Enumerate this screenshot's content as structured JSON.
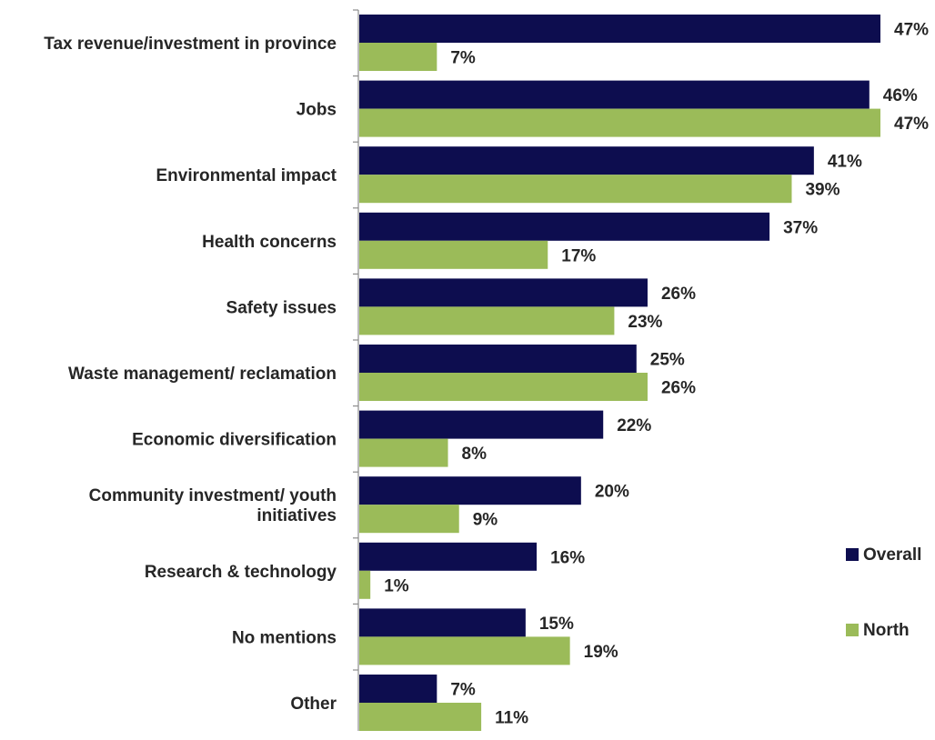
{
  "chart_data": {
    "type": "bar",
    "orientation": "horizontal",
    "categories": [
      [
        "Tax revenue/investment in province"
      ],
      [
        "Jobs"
      ],
      [
        "Environmental impact"
      ],
      [
        "Health concerns"
      ],
      [
        "Safety issues"
      ],
      [
        "Waste management/ reclamation"
      ],
      [
        "Economic diversification"
      ],
      [
        "Community investment/ youth",
        "initiatives"
      ],
      [
        "Research & technology"
      ],
      [
        "No mentions"
      ],
      [
        "Other"
      ]
    ],
    "series": [
      {
        "name": "Overall",
        "color": "#0d0d4f",
        "values": [
          47,
          46,
          41,
          37,
          26,
          25,
          22,
          20,
          16,
          15,
          7
        ],
        "labels": [
          "47%",
          "46%",
          "41%",
          "37%",
          "26%",
          "25%",
          "22%",
          "20%",
          "16%",
          "15%",
          "7%"
        ]
      },
      {
        "name": "North",
        "color": "#9bbb59",
        "values": [
          7,
          47,
          39,
          17,
          23,
          26,
          8,
          9,
          1,
          19,
          11
        ],
        "labels": [
          "7%",
          "47%",
          "39%",
          "17%",
          "23%",
          "26%",
          "8%",
          "9%",
          "1%",
          "19%",
          "11%"
        ]
      }
    ],
    "xlim": [
      0,
      47
    ],
    "grid": false,
    "legend_position": "right"
  }
}
